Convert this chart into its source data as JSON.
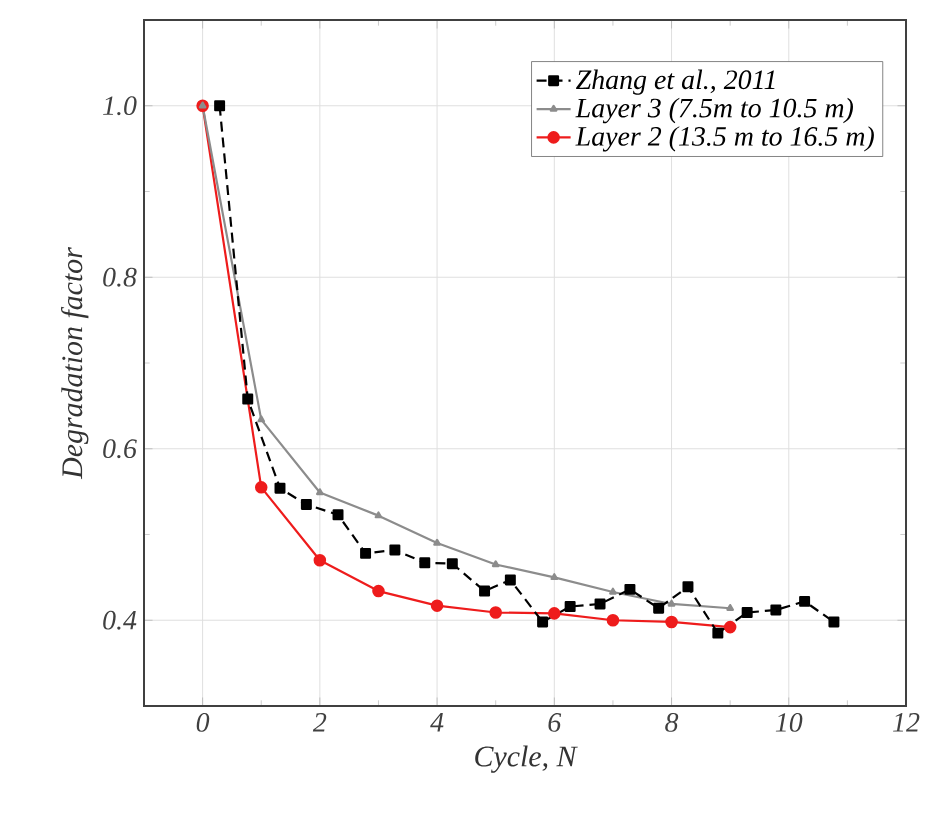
{
  "chart_data": {
    "type": "line",
    "xlabel": "Cycle, N",
    "ylabel": "Degradation factor",
    "xlim": [
      -1,
      12
    ],
    "ylim": [
      0.3,
      1.1
    ],
    "xticks": [
      0,
      2,
      4,
      6,
      8,
      10,
      12
    ],
    "yticks": [
      0.4,
      0.6,
      0.8,
      {
        "value": 1.0,
        "label": "1.0"
      }
    ],
    "grid": true,
    "legend": "top right",
    "series": [
      {
        "name": "Zhang et al., 2011",
        "color": "#000000",
        "marker": "square",
        "line_style": "dashed",
        "x": [
          0.29,
          0.77,
          1.32,
          1.77,
          2.31,
          2.78,
          3.28,
          3.79,
          4.26,
          4.81,
          5.25,
          5.8,
          6.27,
          6.78,
          7.29,
          7.78,
          8.28,
          8.79,
          9.29,
          9.78,
          10.27,
          10.77
        ],
        "values": [
          1.0,
          0.658,
          0.554,
          0.535,
          0.523,
          0.478,
          0.482,
          0.467,
          0.466,
          0.434,
          0.447,
          0.398,
          0.416,
          0.419,
          0.436,
          0.414,
          0.439,
          0.385,
          0.409,
          0.412,
          0.422,
          0.398
        ]
      },
      {
        "name": "Layer 3 (7.5m to 10.5 m)",
        "color": "#8c8c8c",
        "marker": "triangle",
        "line_style": "solid",
        "x": [
          0,
          1,
          2,
          3,
          4,
          5,
          6,
          7,
          8,
          9
        ],
        "values": [
          1.0,
          0.634,
          0.549,
          0.522,
          0.49,
          0.465,
          0.45,
          0.433,
          0.419,
          0.414
        ]
      },
      {
        "name": "Layer 2  (13.5 m to 16.5 m)",
        "color": "#ee1c1c",
        "marker": "circle",
        "line_style": "solid",
        "x": [
          0,
          1,
          2,
          3,
          4,
          5,
          6,
          7,
          8,
          9
        ],
        "values": [
          1.0,
          0.555,
          0.47,
          0.434,
          0.417,
          0.409,
          0.408,
          0.4,
          0.398,
          0.392
        ]
      }
    ]
  }
}
